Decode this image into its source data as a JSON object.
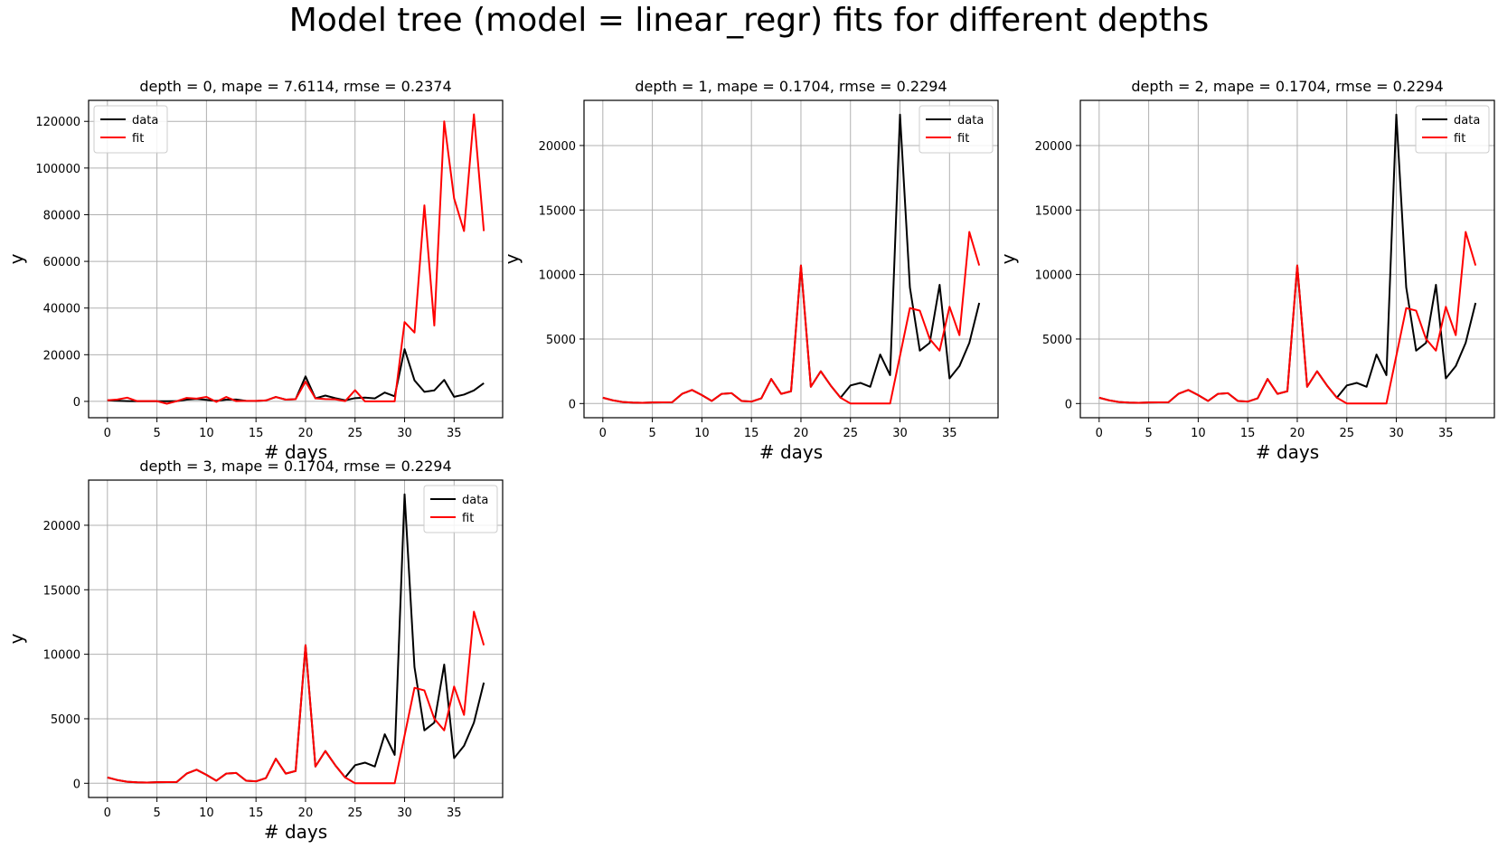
{
  "figure": {
    "title": "Model tree (model = linear_regr) fits for different depths"
  },
  "colors": {
    "data": "#000000",
    "fit": "#ff0000",
    "grid": "#b0b0b0"
  },
  "chart_data": [
    {
      "type": "line",
      "title": "depth = 0, mape = 7.6114, rmse = 0.2374",
      "xlabel": "# days",
      "ylabel": "y",
      "xlim": [
        -1.9,
        39.9
      ],
      "ylim": [
        -7000,
        129000
      ],
      "xticks": [
        0,
        5,
        10,
        15,
        20,
        25,
        30,
        35
      ],
      "yticks": [
        0,
        20000,
        40000,
        60000,
        80000,
        100000,
        120000
      ],
      "grid": true,
      "legend": "upper left",
      "x": [
        0,
        1,
        2,
        3,
        4,
        5,
        6,
        7,
        8,
        9,
        10,
        11,
        12,
        13,
        14,
        15,
        16,
        17,
        18,
        19,
        20,
        21,
        22,
        23,
        24,
        25,
        26,
        27,
        28,
        29,
        30,
        31,
        32,
        33,
        34,
        35,
        36,
        37,
        38
      ],
      "series": [
        {
          "name": "data",
          "color": "#000000",
          "values": [
            450,
            250,
            120,
            70,
            60,
            80,
            90,
            100,
            750,
            1050,
            650,
            200,
            750,
            800,
            200,
            150,
            400,
            1900,
            750,
            950,
            10700,
            1300,
            2500,
            1400,
            450,
            1400,
            1600,
            1300,
            3800,
            2200,
            22400,
            9000,
            4100,
            4700,
            9200,
            1950,
            2900,
            4700,
            7800
          ]
        },
        {
          "name": "fit",
          "color": "#ff0000",
          "values": [
            450,
            800,
            1600,
            100,
            100,
            100,
            -1000,
            100,
            1500,
            1200,
            1900,
            -200,
            1900,
            100,
            200,
            200,
            400,
            1900,
            750,
            950,
            8500,
            1300,
            1000,
            900,
            100,
            4800,
            0,
            0,
            0,
            0,
            34000,
            29500,
            84000,
            32500,
            120000,
            87000,
            73000,
            123000,
            73000
          ]
        }
      ]
    },
    {
      "type": "line",
      "title": "depth = 1, mape = 0.1704, rmse = 0.2294",
      "xlabel": "# days",
      "ylabel": "y",
      "xlim": [
        -1.9,
        39.9
      ],
      "ylim": [
        -1100,
        23500
      ],
      "xticks": [
        0,
        5,
        10,
        15,
        20,
        25,
        30,
        35
      ],
      "yticks": [
        0,
        5000,
        10000,
        15000,
        20000
      ],
      "grid": true,
      "legend": "upper right",
      "x": [
        0,
        1,
        2,
        3,
        4,
        5,
        6,
        7,
        8,
        9,
        10,
        11,
        12,
        13,
        14,
        15,
        16,
        17,
        18,
        19,
        20,
        21,
        22,
        23,
        24,
        25,
        26,
        27,
        28,
        29,
        30,
        31,
        32,
        33,
        34,
        35,
        36,
        37,
        38
      ],
      "series": [
        {
          "name": "data",
          "color": "#000000",
          "values": [
            450,
            250,
            120,
            70,
            60,
            80,
            90,
            100,
            750,
            1050,
            650,
            200,
            750,
            800,
            200,
            150,
            400,
            1900,
            750,
            950,
            10700,
            1300,
            2500,
            1400,
            450,
            1400,
            1600,
            1300,
            3800,
            2200,
            22400,
            9000,
            4100,
            4700,
            9200,
            1950,
            2900,
            4700,
            7800
          ]
        },
        {
          "name": "fit",
          "color": "#ff0000",
          "values": [
            450,
            250,
            120,
            70,
            60,
            80,
            90,
            100,
            750,
            1050,
            650,
            200,
            750,
            800,
            200,
            150,
            400,
            1900,
            750,
            950,
            10700,
            1300,
            2500,
            1400,
            450,
            0,
            0,
            0,
            0,
            0,
            3700,
            7400,
            7200,
            5000,
            4100,
            7500,
            5300,
            13300,
            10700
          ]
        }
      ]
    },
    {
      "type": "line",
      "title": "depth = 2, mape = 0.1704, rmse = 0.2294",
      "xlabel": "# days",
      "ylabel": "y",
      "xlim": [
        -1.9,
        39.9
      ],
      "ylim": [
        -1100,
        23500
      ],
      "xticks": [
        0,
        5,
        10,
        15,
        20,
        25,
        30,
        35
      ],
      "yticks": [
        0,
        5000,
        10000,
        15000,
        20000
      ],
      "grid": true,
      "legend": "upper right",
      "x": [
        0,
        1,
        2,
        3,
        4,
        5,
        6,
        7,
        8,
        9,
        10,
        11,
        12,
        13,
        14,
        15,
        16,
        17,
        18,
        19,
        20,
        21,
        22,
        23,
        24,
        25,
        26,
        27,
        28,
        29,
        30,
        31,
        32,
        33,
        34,
        35,
        36,
        37,
        38
      ],
      "series": [
        {
          "name": "data",
          "color": "#000000",
          "values": [
            450,
            250,
            120,
            70,
            60,
            80,
            90,
            100,
            750,
            1050,
            650,
            200,
            750,
            800,
            200,
            150,
            400,
            1900,
            750,
            950,
            10700,
            1300,
            2500,
            1400,
            450,
            1400,
            1600,
            1300,
            3800,
            2200,
            22400,
            9000,
            4100,
            4700,
            9200,
            1950,
            2900,
            4700,
            7800
          ]
        },
        {
          "name": "fit",
          "color": "#ff0000",
          "values": [
            450,
            250,
            120,
            70,
            60,
            80,
            90,
            100,
            750,
            1050,
            650,
            200,
            750,
            800,
            200,
            150,
            400,
            1900,
            750,
            950,
            10700,
            1300,
            2500,
            1400,
            450,
            0,
            0,
            0,
            0,
            0,
            3700,
            7400,
            7200,
            5000,
            4100,
            7500,
            5300,
            13300,
            10700
          ]
        }
      ]
    },
    {
      "type": "line",
      "title": "depth = 3, mape = 0.1704, rmse = 0.2294",
      "xlabel": "# days",
      "ylabel": "y",
      "xlim": [
        -1.9,
        39.9
      ],
      "ylim": [
        -1100,
        23500
      ],
      "xticks": [
        0,
        5,
        10,
        15,
        20,
        25,
        30,
        35
      ],
      "yticks": [
        0,
        5000,
        10000,
        15000,
        20000
      ],
      "grid": true,
      "legend": "upper right",
      "x": [
        0,
        1,
        2,
        3,
        4,
        5,
        6,
        7,
        8,
        9,
        10,
        11,
        12,
        13,
        14,
        15,
        16,
        17,
        18,
        19,
        20,
        21,
        22,
        23,
        24,
        25,
        26,
        27,
        28,
        29,
        30,
        31,
        32,
        33,
        34,
        35,
        36,
        37,
        38
      ],
      "series": [
        {
          "name": "data",
          "color": "#000000",
          "values": [
            450,
            250,
            120,
            70,
            60,
            80,
            90,
            100,
            750,
            1050,
            650,
            200,
            750,
            800,
            200,
            150,
            400,
            1900,
            750,
            950,
            10700,
            1300,
            2500,
            1400,
            450,
            1400,
            1600,
            1300,
            3800,
            2200,
            22400,
            9000,
            4100,
            4700,
            9200,
            1950,
            2900,
            4700,
            7800
          ]
        },
        {
          "name": "fit",
          "color": "#ff0000",
          "values": [
            450,
            250,
            120,
            70,
            60,
            80,
            90,
            100,
            750,
            1050,
            650,
            200,
            750,
            800,
            200,
            150,
            400,
            1900,
            750,
            950,
            10700,
            1300,
            2500,
            1400,
            450,
            0,
            0,
            0,
            0,
            0,
            3700,
            7400,
            7200,
            5000,
            4100,
            7500,
            5300,
            13300,
            10700
          ]
        }
      ]
    }
  ]
}
